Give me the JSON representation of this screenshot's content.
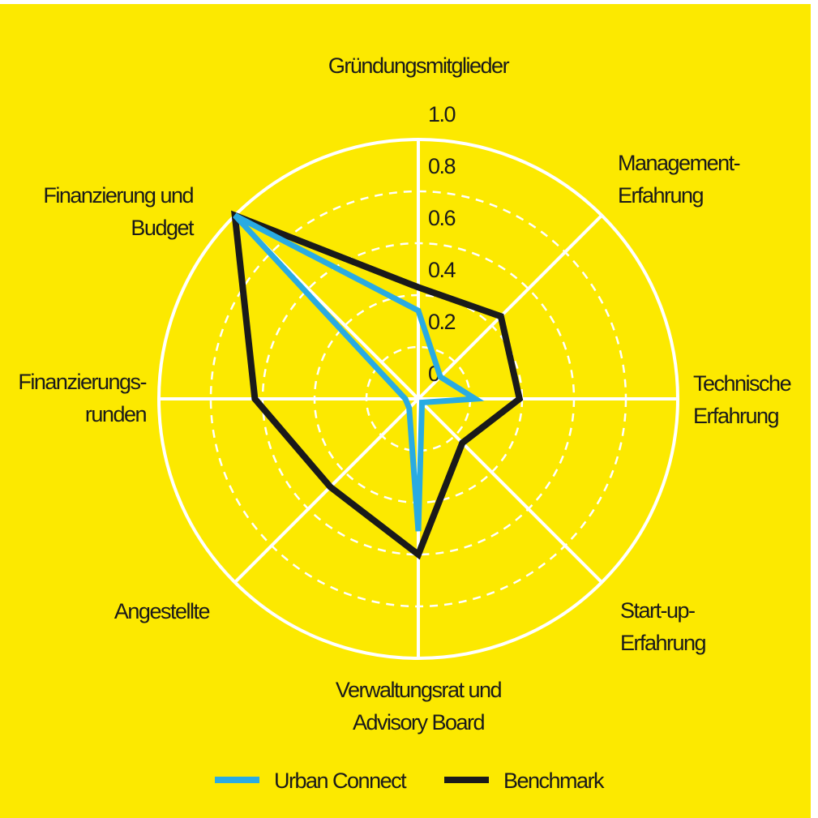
{
  "chart_data": {
    "type": "radar",
    "categories": [
      "Gründungsmitglieder",
      "Management-\nErfahrung",
      "Technische\nErfahrung",
      "Start-up-\nErfahrung",
      "Verwaltungsrat und\nAdvisory Board",
      "Angestellte",
      "Finanzierungs-\nrunden",
      "Finanzierung und\nBudget"
    ],
    "series": [
      {
        "name": "Urban Connect",
        "color": "#29abe2",
        "values": [
          0.34,
          0.12,
          0.22,
          0.02,
          0.51,
          0.05,
          0.05,
          1.0
        ]
      },
      {
        "name": "Benchmark",
        "color": "#1a1a1a",
        "values": [
          0.43,
          0.45,
          0.39,
          0.24,
          0.6,
          0.48,
          0.63,
          1.0
        ]
      }
    ],
    "ylim": [
      0,
      1
    ],
    "yticks": [
      0,
      0.2,
      0.4,
      0.6,
      0.8,
      {
        "value": 1,
        "label": "1.0"
      }
    ],
    "grid": true
  }
}
